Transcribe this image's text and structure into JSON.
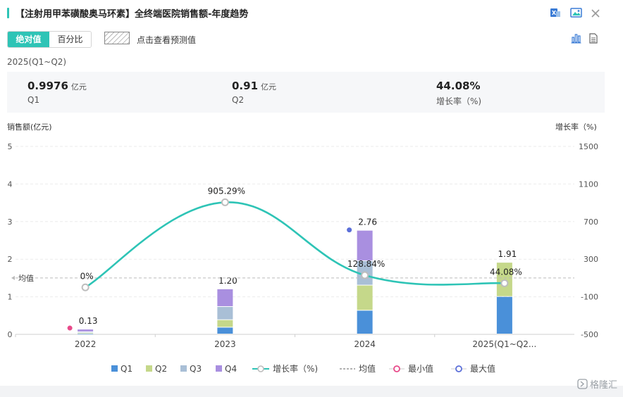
{
  "header": {
    "title": "【注射用甲苯磺酸奥马环素】全终端医院销售额-年度趋势",
    "accent_color": "#2ec4b6",
    "icons": [
      "excel-export-icon",
      "image-export-icon",
      "close-icon"
    ]
  },
  "toolbar": {
    "tab_absolute": "绝对值",
    "tab_percent": "百分比",
    "forecast_label": "点击查看预测值",
    "view_icons": [
      "bar-chart-icon",
      "table-view-icon"
    ]
  },
  "summary": {
    "period": "2025(Q1~Q2)",
    "q1_value": "0.9976",
    "q1_unit": "亿元",
    "q1_label": "Q1",
    "q2_value": "0.91",
    "q2_unit": "亿元",
    "q2_label": "Q2",
    "growth_value": "44.08%",
    "growth_label": "增长率（%)"
  },
  "watermark": "格隆汇",
  "chart_data": {
    "type": "bar",
    "stacked": true,
    "title": "【注射用甲苯磺酸奥马环素】全终端医院销售额-年度趋势",
    "ylabel": "销售额(亿元)",
    "y2label": "增长率（%)",
    "categories": [
      "2022",
      "2023",
      "2024",
      "2025(Q1~Q2..."
    ],
    "ylim": [
      0,
      5
    ],
    "yticks": [
      "0",
      "1",
      "2",
      "3",
      "4",
      "5"
    ],
    "y2lim": [
      -500,
      1500
    ],
    "y2ticks": [
      "-500",
      "-100",
      "300",
      "700",
      "1100",
      "1500"
    ],
    "series": [
      {
        "name": "Q1",
        "color": "#4a90d9",
        "values": [
          0.01,
          0.18,
          0.63,
          0.9976
        ]
      },
      {
        "name": "Q2",
        "color": "#c5d88a",
        "values": [
          0.02,
          0.2,
          0.67,
          0.91
        ]
      },
      {
        "name": "Q3",
        "color": "#a9bfd6",
        "values": [
          0.03,
          0.35,
          0.65,
          0
        ]
      },
      {
        "name": "Q4",
        "color": "#a98fe0",
        "values": [
          0.07,
          0.47,
          0.81,
          0
        ]
      }
    ],
    "totals": [
      0.13,
      1.2,
      2.76,
      1.91
    ],
    "total_labels": [
      "0.13",
      "1.20",
      "2.76",
      "1.91"
    ],
    "growth": {
      "name": "增长率（%)",
      "color": "#2ec4b6",
      "values": [
        0,
        905.29,
        128.84,
        44.08
      ],
      "labels": [
        "0%",
        "905.29%",
        "128.84%",
        "44.08%"
      ]
    },
    "average": {
      "name": "均值",
      "label": "均值",
      "value": 1.5
    },
    "min_marker": {
      "name": "最小值",
      "color": "#e84a8a",
      "category_index": 0
    },
    "max_marker": {
      "name": "最大值",
      "color": "#5b6fd9",
      "category_index": 2
    },
    "legend": [
      "Q1",
      "Q2",
      "Q3",
      "Q4",
      "增长率（%)",
      "均值",
      "最小值",
      "最大值"
    ],
    "legend_position": "bottom",
    "grid": true
  }
}
